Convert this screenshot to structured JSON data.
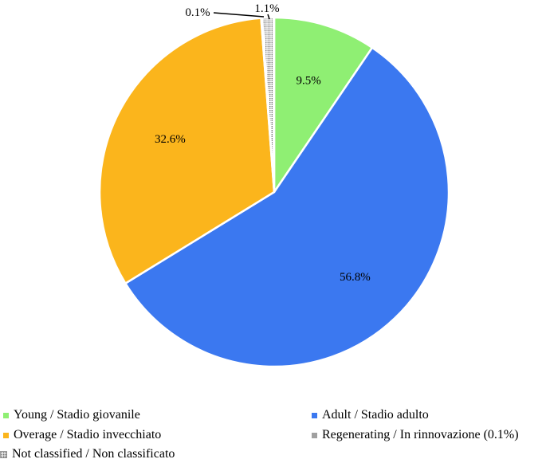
{
  "chart_data": {
    "type": "pie",
    "slices": [
      {
        "label": "Young / Stadio giovanile",
        "value": 9.5,
        "display": "9.5%",
        "color": "#8fef73"
      },
      {
        "label": "Adult / Stadio adulto",
        "value": 56.8,
        "display": "56.8%",
        "color": "#3b78f0"
      },
      {
        "label": "Overage / Stadio invecchiato",
        "value": 32.6,
        "display": "32.6%",
        "color": "#fbb51c"
      },
      {
        "label": "Regenerating / In rinnovazione (0.1%)",
        "value": 0.1,
        "display": "0.1%",
        "color": "#a0a0a0"
      },
      {
        "label": "Not classified / Non classificato",
        "value": 1.1,
        "display": "1.1%",
        "color": "#ffffff",
        "pattern": "dotted"
      }
    ],
    "start": "12 o'clock",
    "direction": "clockwise",
    "legend": "bottom"
  },
  "legend": {
    "young": "Young / Stadio giovanile",
    "adult": "Adult / Stadio adulto",
    "overage": "Overage / Stadio invecchiato",
    "regenerating": "Regenerating / In rinnovazione (0.1%)",
    "not_classified": "Not classified / Non classificato"
  }
}
